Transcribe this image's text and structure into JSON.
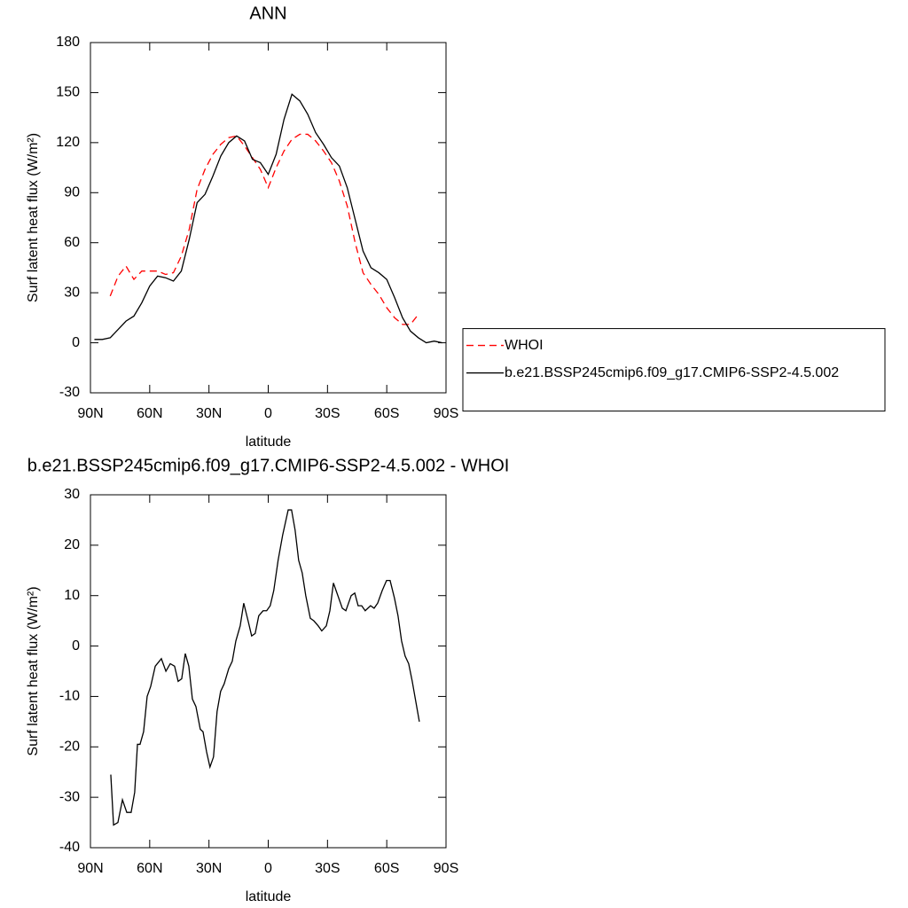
{
  "chart_data": [
    {
      "type": "line",
      "title": "ANN",
      "x_label": "latitude",
      "y_label": "Surf latent heat flux (W/m²)",
      "x": [
        88,
        84,
        80,
        76,
        72,
        68,
        64,
        60,
        56,
        52,
        48,
        44,
        40,
        36,
        32,
        28,
        24,
        20,
        16,
        12,
        8,
        4,
        0,
        -4,
        -8,
        -12,
        -16,
        -20,
        -24,
        -28,
        -32,
        -36,
        -40,
        -44,
        -48,
        -52,
        -56,
        -60,
        -64,
        -68,
        -72,
        -76,
        -80,
        -84,
        -88
      ],
      "series": [
        {
          "name": "WHOI",
          "color": "#ff0000",
          "line_style": "dashed",
          "values": [
            null,
            null,
            28,
            40,
            46,
            38,
            43,
            43,
            43,
            41,
            42,
            52,
            68,
            92,
            104,
            113,
            119,
            123,
            124,
            118,
            111,
            104,
            93,
            105,
            115,
            122,
            125,
            125,
            121,
            115,
            108,
            97,
            82,
            60,
            42,
            35,
            29,
            21,
            15,
            11,
            11,
            17,
            null,
            null,
            null
          ]
        },
        {
          "name": "b.e21.BSSP245cmip6.f09_g17.CMIP6-SSP2-4.5.002",
          "color": "#000000",
          "line_style": "solid",
          "values": [
            2,
            2,
            3,
            8,
            13,
            16,
            24,
            34,
            40,
            39,
            37,
            43,
            62,
            84,
            89,
            100,
            112,
            120,
            124,
            121,
            110,
            108,
            101,
            113,
            134,
            149,
            145,
            137,
            126,
            119,
            111,
            106,
            93,
            74,
            55,
            45,
            42,
            38,
            27,
            15,
            7,
            3,
            0,
            1,
            0
          ]
        }
      ],
      "xlim": [
        90,
        -90
      ],
      "xticks": [
        {
          "value": 90,
          "label": "90N"
        },
        {
          "value": 60,
          "label": "60N"
        },
        {
          "value": 30,
          "label": "30N"
        },
        0,
        {
          "value": -30,
          "label": "30S"
        },
        {
          "value": -60,
          "label": "60S"
        },
        {
          "value": -90,
          "label": "90S"
        }
      ],
      "ylim": [
        -30,
        180
      ],
      "yticks": [
        -30,
        0,
        30,
        60,
        90,
        120,
        150,
        180
      ],
      "grid": false,
      "legend": "right"
    },
    {
      "type": "line",
      "title": "b.e21.BSSP245cmip6.f09_g17.CMIP6-SSP2-4.5.002 - WHOI",
      "x_label": "latitude",
      "y_label": "Surf latent heat flux (W/m²)",
      "x": [
        79.7,
        78.3,
        76.1,
        73.8,
        71.6,
        69.4,
        67.6,
        66.2,
        64.9,
        63.1,
        61.3,
        59.5,
        57.2,
        54.1,
        51.8,
        49.6,
        47.4,
        45.6,
        43.8,
        42.0,
        40.2,
        38.4,
        36.6,
        34.4,
        33.0,
        31.2,
        29.5,
        27.7,
        25.9,
        24.1,
        22.3,
        20.0,
        18.2,
        16.4,
        14.2,
        12.4,
        10.2,
        8.4,
        6.6,
        4.8,
        2.6,
        0.8,
        -1.0,
        -2.8,
        -5.0,
        -7.3,
        -10.1,
        -11.8,
        -13.6,
        -15.4,
        -17.2,
        -19.0,
        -21.3,
        -23.1,
        -25.3,
        -27.1,
        -29.4,
        -31.2,
        -33.0,
        -34.8,
        -37.5,
        -39.3,
        -42.0,
        -43.8,
        -45.5,
        -47.3,
        -49.1,
        -51.8,
        -53.6,
        -55.4,
        -57.7,
        -59.9,
        -61.7,
        -63.9,
        -65.7,
        -67.5,
        -69.3,
        -71.1,
        -72.9,
        -74.7,
        -76.5
      ],
      "series": [
        {
          "color": "#000000",
          "line_style": "solid",
          "values": [
            -25.5,
            -35.5,
            -35,
            -30.5,
            -33,
            -33,
            -29,
            -19.5,
            -19.5,
            -17,
            -10,
            -8,
            -4,
            -2.5,
            -5,
            -3.5,
            -4,
            -7,
            -6.5,
            -1.5,
            -4,
            -10.5,
            -12,
            -16.5,
            -17,
            -21,
            -24,
            -22,
            -13,
            -9,
            -7.5,
            -4.5,
            -3,
            1,
            4,
            8.5,
            5,
            2,
            2.5,
            6,
            7,
            7,
            8,
            11,
            17,
            22,
            27,
            27,
            23,
            17,
            14.5,
            10,
            5.5,
            5,
            4,
            3,
            4,
            7,
            12.5,
            10.5,
            7.5,
            7,
            10,
            10.5,
            8,
            8,
            7,
            8,
            7.5,
            8.5,
            11,
            13,
            13,
            9.5,
            6,
            1,
            -2,
            -3.5,
            -7,
            -11,
            -15
          ]
        }
      ],
      "xlim": [
        90,
        -90
      ],
      "xticks": [
        {
          "value": 90,
          "label": "90N"
        },
        {
          "value": 60,
          "label": "60N"
        },
        {
          "value": 30,
          "label": "30N"
        },
        0,
        {
          "value": -30,
          "label": "30S"
        },
        {
          "value": -60,
          "label": "60S"
        },
        {
          "value": -90,
          "label": "90S"
        }
      ],
      "ylim": [
        -40,
        30
      ],
      "yticks": [
        -40,
        -30,
        -20,
        -10,
        0,
        10,
        20,
        30
      ],
      "grid": false
    }
  ]
}
